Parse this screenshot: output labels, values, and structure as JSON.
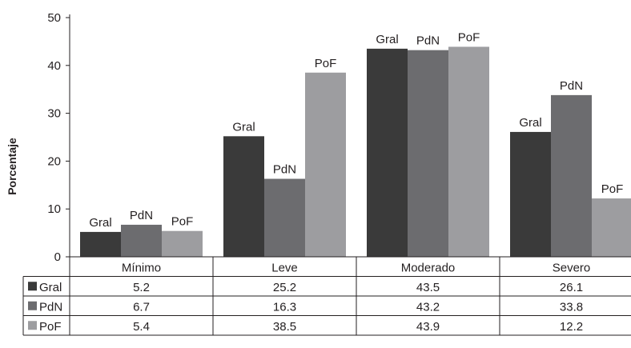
{
  "chart_data": {
    "type": "bar",
    "ylabel": "Porcentaje",
    "ylim": [
      0,
      50
    ],
    "yticks": [
      "0",
      "10",
      "20",
      "30",
      "40",
      "50"
    ],
    "categories": [
      "Mínimo",
      "Leve",
      "Moderado",
      "Severo"
    ],
    "series": [
      {
        "name": "Gral",
        "color": "#3a3a3a",
        "values": [
          5.2,
          25.2,
          43.5,
          26.1
        ],
        "display": [
          "5.2",
          "25.2",
          "43.5",
          "26.1"
        ]
      },
      {
        "name": "PdN",
        "color": "#6c6c6f",
        "values": [
          6.7,
          16.3,
          43.2,
          33.8
        ],
        "display": [
          "6.7",
          "16.3",
          "43.2",
          "33.8"
        ]
      },
      {
        "name": "PoF",
        "color": "#9d9da0",
        "values": [
          5.4,
          38.5,
          43.9,
          12.2
        ],
        "display": [
          "5.4",
          "38.5",
          "43.9",
          "12.2"
        ]
      }
    ],
    "bar_labels": "series-name-above-bar",
    "legend": "data-table-below",
    "grid": false
  }
}
